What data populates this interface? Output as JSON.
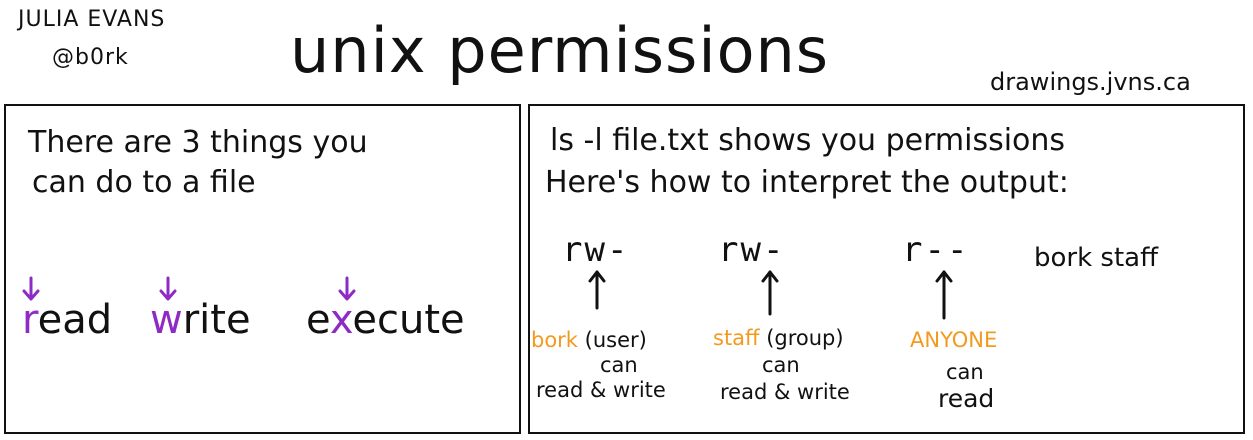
{
  "header": {
    "author": "JULIA EVANS",
    "handle": "@b0rk",
    "title": "unix permissions",
    "site": "drawings.jvns.ca"
  },
  "left_panel": {
    "line1": "There are 3 things you",
    "line2": "can do to a file",
    "words": [
      {
        "first": "r",
        "rest": "ead"
      },
      {
        "first": "w",
        "rest": "rite"
      },
      {
        "before": "e",
        "first": "x",
        "rest": "ecute"
      }
    ]
  },
  "right_panel": {
    "line1": "ls -l file.txt shows you permissions",
    "line2": "Here's how to interpret the output:",
    "perm_user": "rw-",
    "perm_group": "rw-",
    "perm_other": "r--",
    "owner_group": "bork staff",
    "user_desc": {
      "name": "bork",
      "role": "(user)",
      "can": "can",
      "action": "read & write"
    },
    "group_desc": {
      "name": "staff",
      "role": "(group)",
      "can": "can",
      "action": "read & write"
    },
    "other_desc": {
      "name": "ANYONE",
      "can": "can",
      "action": "read"
    }
  },
  "colors": {
    "highlight_purple": "#8e2bc4",
    "highlight_orange": "#f39a1e"
  }
}
